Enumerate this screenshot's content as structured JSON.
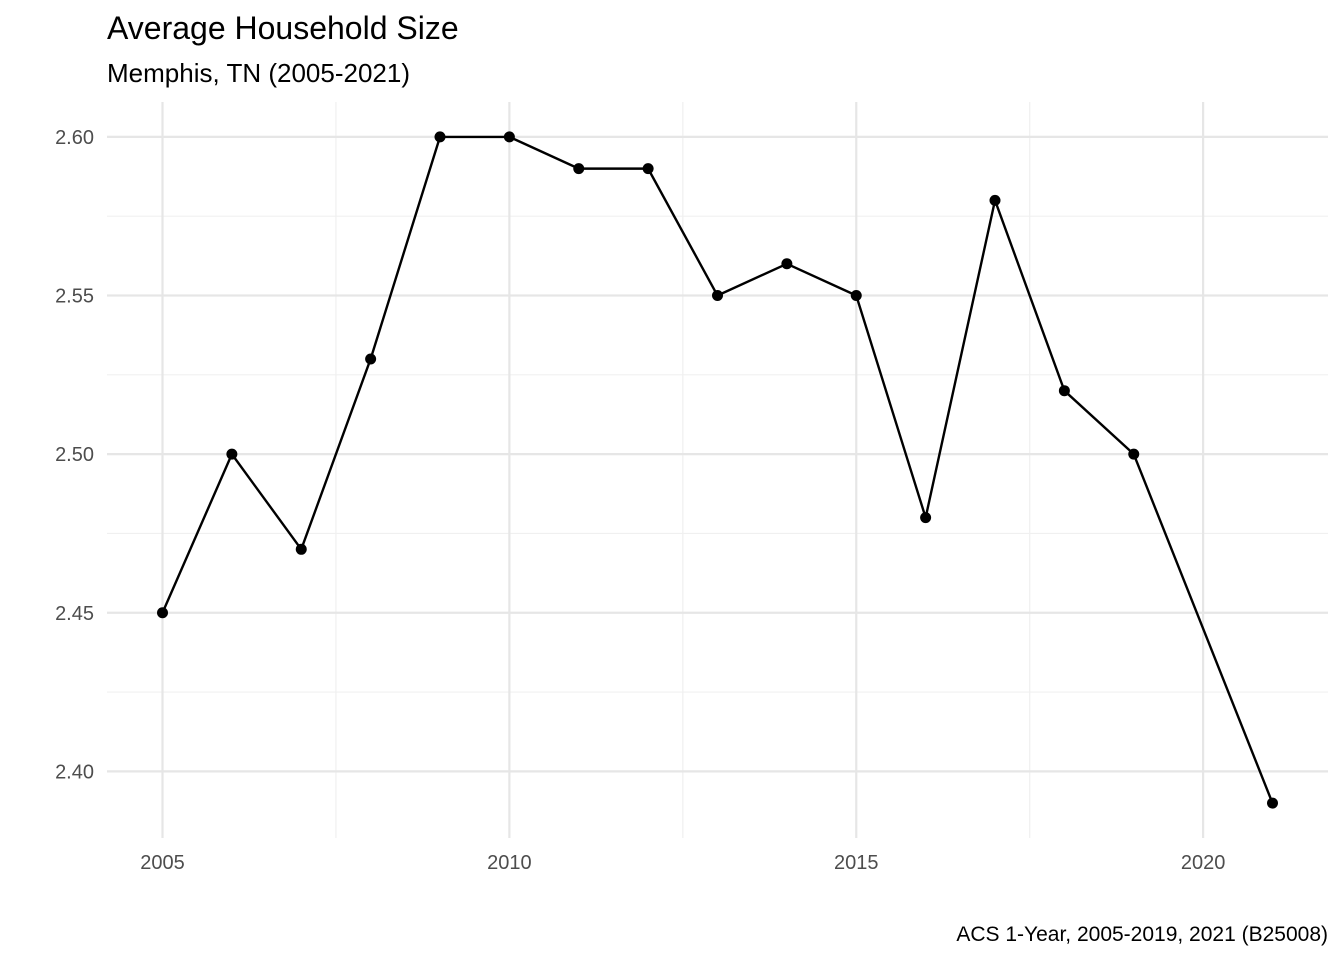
{
  "chart_data": {
    "type": "line",
    "title": "Average Household Size",
    "subtitle": "Memphis, TN (2005-2021)",
    "caption": "ACS 1-Year, 2005-2019, 2021 (B25008)",
    "xlabel": "",
    "ylabel": "",
    "x": [
      2005,
      2006,
      2007,
      2008,
      2009,
      2010,
      2011,
      2012,
      2013,
      2014,
      2015,
      2016,
      2017,
      2018,
      2019,
      2021
    ],
    "y": [
      2.45,
      2.5,
      2.47,
      2.53,
      2.6,
      2.6,
      2.59,
      2.59,
      2.55,
      2.56,
      2.55,
      2.48,
      2.58,
      2.52,
      2.5,
      2.39
    ],
    "xlim": [
      2004.2,
      2021.8
    ],
    "ylim": [
      2.379,
      2.611
    ],
    "x_ticks": [
      2005,
      2010,
      2015,
      2020
    ],
    "x_tick_labels": [
      "2005",
      "2010",
      "2015",
      "2020"
    ],
    "y_ticks": [
      2.4,
      2.45,
      2.5,
      2.55,
      2.6
    ],
    "y_tick_labels": [
      "2.40",
      "2.45",
      "2.50",
      "2.55",
      "2.60"
    ],
    "x_minor_ticks": [
      2007.5,
      2012.5,
      2017.5
    ],
    "y_minor_ticks": [
      2.425,
      2.475,
      2.525,
      2.575
    ],
    "grid": true,
    "legend": "none",
    "colors": {
      "line": "#000000",
      "points": "#000000",
      "grid_major": "#e6e6e6",
      "grid_minor": "#f0f0f0",
      "title": "#000000",
      "tick_label": "#4d4d4d"
    }
  }
}
